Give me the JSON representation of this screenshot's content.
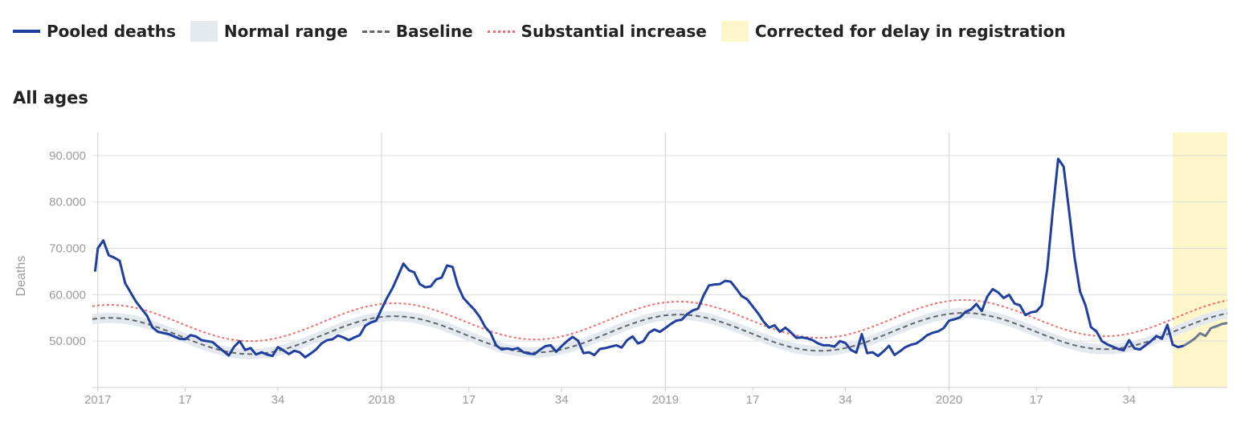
{
  "legend": {
    "pooled": "Pooled deaths",
    "normal": "Normal range",
    "baseline": "Baseline",
    "substantial": "Substantial increase",
    "corrected": "Corrected for delay in registration"
  },
  "panel_title": "All ages",
  "colors": {
    "pooled": "#1f3f9e",
    "normal_range": "#e4e9f0",
    "baseline": "#666666",
    "substantial": "#f26b6b",
    "corrected": "#fdf6c9"
  },
  "chart_data": {
    "type": "line",
    "title": "All ages",
    "ylabel": "Deaths",
    "ylim": [
      40000,
      95000
    ],
    "yticks": [
      50000,
      60000,
      70000,
      80000,
      90000
    ],
    "ytick_labels": [
      "50.000",
      "60.000",
      "70.000",
      "80.000",
      "90.000"
    ],
    "xticks": [
      1,
      17,
      34,
      53,
      69,
      86,
      105,
      121,
      138,
      157,
      173,
      190
    ],
    "xtick_labels": [
      "2017",
      "17",
      "34",
      "2018",
      "17",
      "34",
      "2019",
      "17",
      "34",
      "2020",
      "17",
      "34"
    ],
    "x_note": "sequential week index: 2017 wk1 = 1, 2018 wk1 = 53, 2019 wk1 = 105, 2020 wk1 = 157",
    "corrected_range": [
      198,
      200
    ],
    "series": [
      {
        "name": "Pooled deaths",
        "points": [
          [
            0.5,
            65000
          ],
          [
            1,
            70000
          ],
          [
            2,
            71700
          ],
          [
            3,
            68500
          ],
          [
            4,
            68000
          ],
          [
            5,
            67300
          ],
          [
            6,
            62500
          ],
          [
            8,
            58500
          ],
          [
            10,
            55500
          ],
          [
            11,
            53000
          ],
          [
            12,
            52000
          ],
          [
            14,
            51500
          ],
          [
            16,
            50500
          ],
          [
            17,
            50400
          ],
          [
            18,
            51300
          ],
          [
            19,
            51000
          ],
          [
            20,
            50200
          ],
          [
            22,
            49800
          ],
          [
            23,
            48800
          ],
          [
            25,
            46900
          ],
          [
            26,
            48800
          ],
          [
            27,
            50000
          ],
          [
            28,
            48100
          ],
          [
            29,
            48500
          ],
          [
            30,
            47100
          ],
          [
            31,
            47600
          ],
          [
            32,
            47100
          ],
          [
            33,
            46800
          ],
          [
            34,
            48700
          ],
          [
            35,
            48000
          ],
          [
            36,
            47200
          ],
          [
            37,
            47900
          ],
          [
            38,
            47600
          ],
          [
            39,
            46500
          ],
          [
            40,
            47300
          ],
          [
            41,
            48200
          ],
          [
            42,
            49500
          ],
          [
            43,
            50200
          ],
          [
            44,
            50400
          ],
          [
            45,
            51200
          ],
          [
            46,
            50800
          ],
          [
            47,
            50200
          ],
          [
            48,
            50800
          ],
          [
            49,
            51300
          ],
          [
            50,
            53300
          ],
          [
            51,
            54000
          ],
          [
            52,
            54400
          ],
          [
            53,
            56900
          ],
          [
            54,
            59300
          ],
          [
            55,
            61400
          ],
          [
            56,
            64000
          ],
          [
            57,
            66700
          ],
          [
            58,
            65300
          ],
          [
            59,
            64800
          ],
          [
            60,
            62300
          ],
          [
            61,
            61600
          ],
          [
            62,
            61800
          ],
          [
            63,
            63300
          ],
          [
            64,
            63700
          ],
          [
            65,
            66300
          ],
          [
            66,
            66000
          ],
          [
            67,
            61900
          ],
          [
            68,
            59300
          ],
          [
            69,
            58000
          ],
          [
            70,
            56800
          ],
          [
            71,
            55200
          ],
          [
            72,
            53000
          ],
          [
            73,
            51700
          ],
          [
            74,
            49100
          ],
          [
            75,
            48200
          ],
          [
            76,
            48400
          ],
          [
            77,
            48200
          ],
          [
            78,
            48500
          ],
          [
            79,
            47600
          ],
          [
            80,
            47300
          ],
          [
            81,
            47200
          ],
          [
            82,
            48100
          ],
          [
            83,
            48900
          ],
          [
            84,
            49100
          ],
          [
            85,
            47700
          ],
          [
            86,
            48900
          ],
          [
            87,
            50000
          ],
          [
            88,
            50900
          ],
          [
            89,
            50100
          ],
          [
            90,
            47400
          ],
          [
            91,
            47600
          ],
          [
            92,
            47000
          ],
          [
            93,
            48300
          ],
          [
            94,
            48500
          ],
          [
            95,
            48800
          ],
          [
            96,
            49100
          ],
          [
            97,
            48600
          ],
          [
            98,
            50200
          ],
          [
            99,
            51000
          ],
          [
            100,
            49500
          ],
          [
            101,
            50000
          ],
          [
            102,
            51800
          ],
          [
            103,
            52500
          ],
          [
            104,
            52000
          ],
          [
            105,
            52800
          ],
          [
            106,
            53700
          ],
          [
            107,
            54400
          ],
          [
            108,
            54600
          ],
          [
            109,
            55800
          ],
          [
            110,
            56600
          ],
          [
            111,
            57000
          ],
          [
            112,
            59800
          ],
          [
            113,
            62000
          ],
          [
            114,
            62200
          ],
          [
            115,
            62300
          ],
          [
            116,
            63000
          ],
          [
            117,
            62800
          ],
          [
            118,
            61300
          ],
          [
            119,
            59700
          ],
          [
            120,
            59000
          ],
          [
            121,
            57500
          ],
          [
            122,
            56000
          ],
          [
            123,
            54200
          ],
          [
            124,
            52900
          ],
          [
            125,
            53400
          ],
          [
            126,
            52000
          ],
          [
            127,
            52900
          ],
          [
            128,
            51900
          ],
          [
            129,
            50700
          ],
          [
            130,
            50800
          ],
          [
            131,
            50600
          ],
          [
            132,
            50200
          ],
          [
            133,
            49500
          ],
          [
            134,
            49100
          ],
          [
            135,
            49100
          ],
          [
            136,
            48800
          ],
          [
            137,
            50000
          ],
          [
            138,
            49600
          ],
          [
            139,
            48100
          ],
          [
            140,
            47500
          ],
          [
            141,
            51500
          ],
          [
            142,
            47400
          ],
          [
            143,
            47600
          ],
          [
            144,
            46800
          ],
          [
            145,
            47800
          ],
          [
            146,
            49000
          ],
          [
            147,
            47000
          ],
          [
            148,
            47800
          ],
          [
            149,
            48700
          ],
          [
            150,
            49200
          ],
          [
            151,
            49500
          ],
          [
            152,
            50300
          ],
          [
            153,
            51300
          ],
          [
            154,
            51800
          ],
          [
            155,
            52100
          ],
          [
            156,
            52800
          ],
          [
            157,
            54400
          ],
          [
            158,
            54700
          ],
          [
            159,
            55100
          ],
          [
            160,
            56300
          ],
          [
            161,
            56800
          ],
          [
            162,
            58000
          ],
          [
            163,
            56500
          ],
          [
            164,
            59600
          ],
          [
            165,
            61200
          ],
          [
            166,
            60500
          ],
          [
            167,
            59300
          ],
          [
            168,
            60000
          ],
          [
            169,
            58100
          ],
          [
            170,
            57700
          ],
          [
            171,
            55600
          ],
          [
            172,
            56200
          ],
          [
            173,
            56400
          ],
          [
            174,
            57700
          ],
          [
            175,
            65500
          ],
          [
            176,
            78000
          ],
          [
            177,
            89300
          ],
          [
            178,
            87600
          ],
          [
            179,
            78000
          ],
          [
            180,
            68000
          ],
          [
            181,
            60700
          ],
          [
            182,
            57700
          ],
          [
            183,
            53000
          ],
          [
            184,
            52100
          ],
          [
            185,
            50000
          ],
          [
            186,
            49300
          ],
          [
            187,
            48800
          ],
          [
            188,
            48300
          ],
          [
            189,
            48000
          ],
          [
            190,
            50200
          ],
          [
            191,
            48400
          ],
          [
            192,
            48200
          ],
          [
            193,
            49100
          ],
          [
            194,
            50000
          ],
          [
            195,
            51100
          ],
          [
            196,
            50500
          ],
          [
            197,
            53500
          ],
          [
            198,
            49200
          ],
          [
            199,
            48700
          ],
          [
            200,
            49000
          ]
        ]
      },
      {
        "name": "Pooled deaths (corrected for delay in registration)",
        "points": [
          [
            200,
            49000
          ],
          [
            201,
            49700
          ],
          [
            202,
            50500
          ],
          [
            203,
            51700
          ],
          [
            204,
            51100
          ],
          [
            205,
            52800
          ],
          [
            206,
            53200
          ],
          [
            207,
            53700
          ],
          [
            208,
            53900
          ]
        ]
      },
      {
        "name": "Baseline",
        "mean": 51000,
        "amplitude": 4000,
        "peak_week": 3,
        "period": 52.2,
        "trend_per_year": 350,
        "x_range": [
          0,
          208
        ]
      },
      {
        "name": "Substantial increase",
        "offset_from_baseline": 2800,
        "x_range": [
          0,
          208
        ]
      },
      {
        "name": "Normal range",
        "half_width_around_baseline": 1100,
        "x_range": [
          0,
          208
        ]
      }
    ],
    "grid": true,
    "legend_position": "top-left"
  }
}
